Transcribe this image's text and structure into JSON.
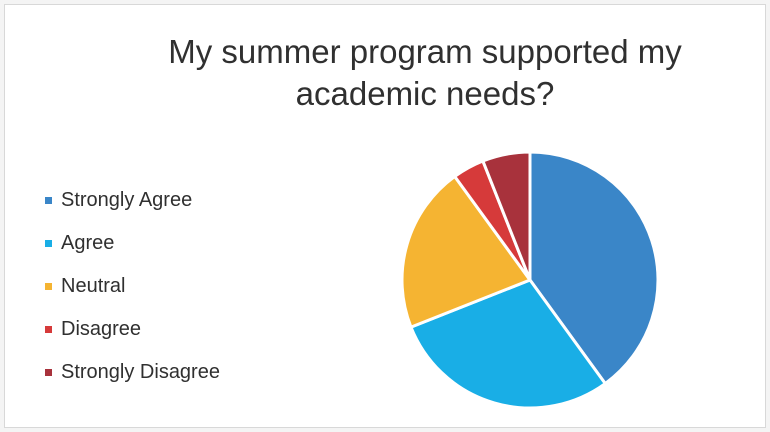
{
  "chart_data": {
    "type": "pie",
    "title": "My summer program supported my academic needs?",
    "legend_position": "left",
    "categories": [
      "Strongly Agree",
      "Agree",
      "Neutral",
      "Disagree",
      "Strongly Disagree"
    ],
    "values": [
      40,
      29,
      21,
      4,
      6
    ],
    "colors": [
      "#3a86c8",
      "#19aee6",
      "#f5b432",
      "#d63a3a",
      "#a8323c"
    ]
  }
}
